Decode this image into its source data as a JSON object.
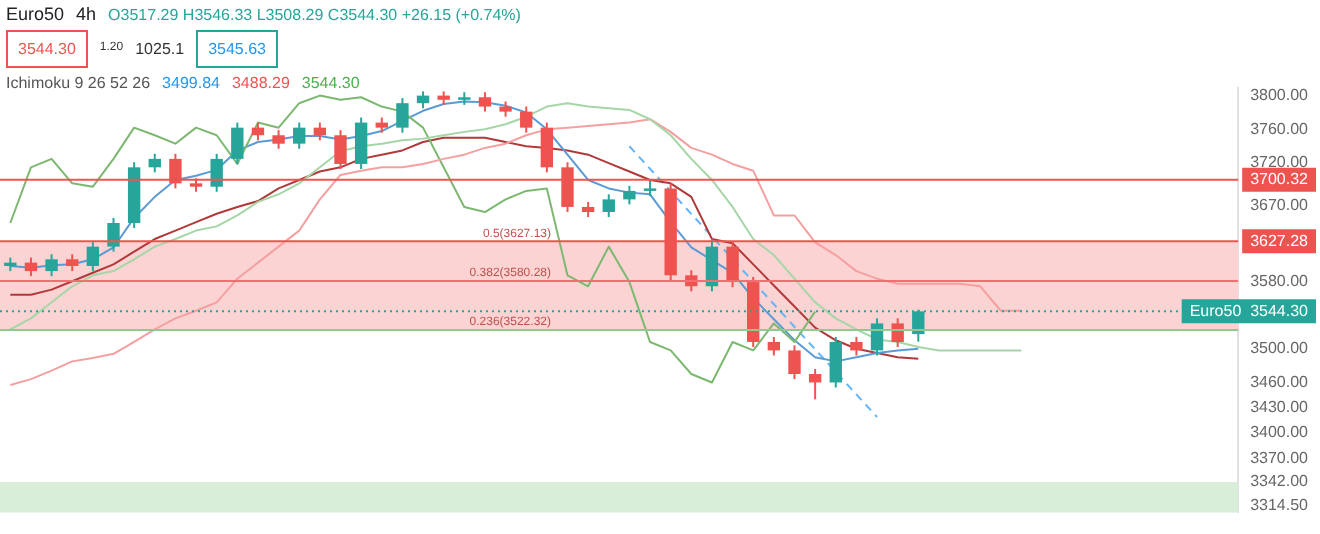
{
  "chart_data": {
    "type": "candlestick",
    "title": "Euro50",
    "subtitle": "4h",
    "categories": [
      null,
      null,
      null,
      null,
      null,
      null,
      null,
      null,
      null,
      null,
      null,
      null,
      null,
      null,
      null,
      null,
      null,
      null,
      null,
      null,
      null,
      null,
      null,
      null,
      null,
      null,
      null,
      null,
      null,
      null,
      null,
      null,
      null,
      null,
      null,
      null,
      null,
      null,
      null,
      null,
      null,
      null,
      null,
      null,
      null,
      null,
      null,
      null,
      null,
      null,
      null,
      null,
      null,
      null,
      null,
      null,
      null,
      null,
      null,
      null
    ],
    "ohlc": [
      [
        3598,
        3608,
        3592,
        3602
      ],
      [
        3602,
        3608,
        3586,
        3592
      ],
      [
        3592,
        3612,
        3586,
        3606
      ],
      [
        3606,
        3612,
        3592,
        3598
      ],
      [
        3598,
        3627,
        3592,
        3621
      ],
      [
        3621,
        3655,
        3615,
        3649
      ],
      [
        3649,
        3721,
        3643,
        3715
      ],
      [
        3715,
        3731,
        3709,
        3725
      ],
      [
        3725,
        3731,
        3690,
        3696
      ],
      [
        3696,
        3702,
        3686,
        3692
      ],
      [
        3692,
        3731,
        3686,
        3725
      ],
      [
        3725,
        3768,
        3719,
        3762
      ],
      [
        3762,
        3768,
        3747,
        3753
      ],
      [
        3753,
        3759,
        3737,
        3743
      ],
      [
        3743,
        3768,
        3737,
        3762
      ],
      [
        3762,
        3768,
        3747,
        3753
      ],
      [
        3753,
        3759,
        3713,
        3719
      ],
      [
        3719,
        3774,
        3713,
        3768
      ],
      [
        3768,
        3774,
        3756,
        3762
      ],
      [
        3762,
        3797,
        3756,
        3791
      ],
      [
        3791,
        3805,
        3785,
        3800
      ],
      [
        3800,
        3805,
        3789,
        3795
      ],
      [
        3795,
        3804,
        3789,
        3798
      ],
      [
        3798,
        3804,
        3781,
        3787
      ],
      [
        3787,
        3793,
        3775,
        3781
      ],
      [
        3781,
        3787,
        3756,
        3762
      ],
      [
        3762,
        3768,
        3709,
        3715
      ],
      [
        3715,
        3721,
        3662,
        3668
      ],
      [
        3668,
        3674,
        3656,
        3662
      ],
      [
        3662,
        3683,
        3656,
        3677
      ],
      [
        3677,
        3693,
        3671,
        3687
      ],
      [
        3687,
        3700,
        3681,
        3690
      ],
      [
        3690,
        3696,
        3581,
        3587
      ],
      [
        3587,
        3593,
        3568,
        3574
      ],
      [
        3574,
        3630,
        3568,
        3621
      ],
      [
        3621,
        3627,
        3573,
        3579
      ],
      [
        3579,
        3585,
        3502,
        3508
      ],
      [
        3508,
        3514,
        3492,
        3498
      ],
      [
        3498,
        3504,
        3464,
        3470
      ],
      [
        3470,
        3476,
        3440,
        3460
      ],
      [
        3460,
        3514,
        3454,
        3508
      ],
      [
        3508,
        3514,
        3492,
        3498
      ],
      [
        3498,
        3536,
        3492,
        3530
      ],
      [
        3530,
        3536,
        3502,
        3508
      ],
      [
        3517.29,
        3546.33,
        3508.29,
        3544.3
      ],
      null,
      null,
      null,
      null,
      null,
      null,
      null,
      null,
      null,
      null,
      null,
      null,
      null,
      null,
      null
    ],
    "colors": [
      "#26a69a",
      "#ef5350",
      "#26a69a",
      "#ef5350",
      "#26a69a",
      "#26a69a",
      "#26a69a",
      "#26a69a",
      "#ef5350",
      "#ef5350",
      "#26a69a",
      "#26a69a",
      "#ef5350",
      "#ef5350",
      "#26a69a",
      "#ef5350",
      "#ef5350",
      "#26a69a",
      "#ef5350",
      "#26a69a",
      "#26a69a",
      "#ef5350",
      "#26a69a",
      "#ef5350",
      "#ef5350",
      "#ef5350",
      "#ef5350",
      "#ef5350",
      "#ef5350",
      "#26a69a",
      "#26a69a",
      "#26a69a",
      "#ef5350",
      "#ef5350",
      "#26a69a",
      "#ef5350",
      "#ef5350",
      "#ef5350",
      "#ef5350",
      "#ef5350",
      "#26a69a",
      "#ef5350",
      "#26a69a",
      "#ef5350",
      "#26a69a",
      null,
      null,
      null,
      null,
      null,
      null,
      null,
      null,
      null,
      null,
      null,
      null,
      null,
      null,
      null
    ],
    "series": [
      {
        "type": "line",
        "color": "#a5d6a7",
        "values": [
          3523,
          3536,
          3555,
          3574,
          3587,
          3592,
          3606,
          3621,
          3630,
          3640,
          3645,
          3658,
          3674,
          3683,
          3696,
          3715,
          3734,
          3740,
          3743,
          3747,
          3749,
          3753,
          3757,
          3760,
          3766,
          3775,
          3787,
          3791,
          3787,
          3785,
          3783,
          3772,
          3753,
          3725,
          3700,
          3668,
          3630,
          3611,
          3583,
          3555,
          3536,
          3523,
          3511,
          3508,
          3502,
          3498,
          3498,
          3498,
          3498,
          3498,
          null,
          null,
          null,
          null,
          null,
          null,
          null,
          null,
          null,
          null
        ]
      },
      {
        "type": "line",
        "color": "#f4a0a0",
        "values": [
          3457,
          3464,
          3474,
          3485,
          3489,
          3494,
          3508,
          3523,
          3536,
          3545,
          3555,
          3583,
          3602,
          3621,
          3640,
          3677,
          3706,
          3711,
          3715,
          3715,
          3719,
          3725,
          3730,
          3738,
          3743,
          3753,
          3760,
          3762,
          3764,
          3766,
          3768,
          3772,
          3757,
          3738,
          3730,
          3719,
          3711,
          3658,
          3658,
          3626,
          3611,
          3592,
          3583,
          3577,
          3577,
          3577,
          3577,
          3574,
          3545,
          3545,
          null,
          null,
          null,
          null,
          null,
          null,
          null,
          null,
          null,
          null
        ]
      },
      {
        "type": "line",
        "color": "#7cb870",
        "values": [
          3649,
          3715,
          3725,
          3696,
          3692,
          3725,
          3762,
          3753,
          3743,
          3762,
          3753,
          3719,
          3768,
          3762,
          3791,
          3800,
          3795,
          3798,
          3787,
          3781,
          3762,
          3715,
          3668,
          3662,
          3677,
          3687,
          3690,
          3587,
          3574,
          3621,
          3579,
          3508,
          3498,
          3470,
          3460,
          3508,
          3498,
          3530,
          3508,
          3544,
          null,
          null,
          null,
          null,
          null,
          null,
          null,
          null,
          null,
          null,
          null,
          null,
          null,
          null,
          null,
          null,
          null,
          null,
          null,
          null
        ]
      },
      {
        "type": "line",
        "color": "#5b9bd5",
        "values": [
          3598,
          3596,
          3599,
          3600,
          3606,
          3620,
          3655,
          3680,
          3700,
          3705,
          3712,
          3735,
          3745,
          3748,
          3752,
          3752,
          3748,
          3752,
          3758,
          3770,
          3782,
          3790,
          3793,
          3792,
          3788,
          3780,
          3760,
          3730,
          3700,
          3690,
          3685,
          3683,
          3650,
          3620,
          3605,
          3590,
          3560,
          3535,
          3510,
          3490,
          3485,
          3490,
          3495,
          3498,
          3500,
          null,
          null,
          null,
          null,
          null,
          null,
          null,
          null,
          null,
          null,
          null,
          null,
          null,
          null,
          null
        ]
      },
      {
        "type": "line",
        "color": "#b03a3a",
        "values": [
          3564,
          3564,
          3570,
          3580,
          3590,
          3600,
          3615,
          3630,
          3640,
          3650,
          3660,
          3668,
          3675,
          3690,
          3700,
          3710,
          3715,
          3725,
          3730,
          3735,
          3745,
          3750,
          3750,
          3750,
          3745,
          3740,
          3738,
          3735,
          3730,
          3720,
          3710,
          3700,
          3696,
          3680,
          3630,
          3625,
          3600,
          3575,
          3550,
          3525,
          3510,
          3500,
          3495,
          3490,
          3488,
          null,
          null,
          null,
          null,
          null,
          null,
          null,
          null,
          null,
          null,
          null,
          null,
          null,
          null,
          null
        ]
      },
      {
        "type": "line",
        "color": "#64b5f6",
        "line_style": "dashed",
        "values": [
          null,
          null,
          null,
          null,
          null,
          null,
          null,
          null,
          null,
          null,
          null,
          null,
          null,
          null,
          null,
          null,
          null,
          null,
          null,
          null,
          null,
          null,
          null,
          null,
          null,
          null,
          null,
          null,
          null,
          null,
          3740,
          null,
          null,
          null,
          null,
          null,
          null,
          null,
          null,
          null,
          null,
          null,
          3419,
          null,
          null,
          null,
          null,
          null,
          null,
          null,
          null,
          null,
          null,
          null,
          null,
          null,
          null,
          null,
          null,
          null
        ]
      }
    ],
    "ylim": [
      3306,
      3809
    ],
    "yticks": [
      {
        "value": 3800,
        "label": "3800.00"
      },
      {
        "value": 3760,
        "label": "3760.00"
      },
      {
        "value": 3720,
        "label": "3720.00"
      },
      {
        "value": 3670,
        "label": "3670.00"
      },
      {
        "value": 3580,
        "label": "3580.00"
      },
      {
        "value": 3500,
        "label": "3500.00"
      },
      {
        "value": 3460,
        "label": "3460.00"
      },
      {
        "value": 3430,
        "label": "3430.00"
      },
      {
        "value": 3400,
        "label": "3400.00"
      },
      {
        "value": 3370,
        "label": "3370.00"
      },
      {
        "value": 3342,
        "label": "3342.00"
      },
      {
        "value": 3314.5,
        "label": "3314.50"
      }
    ],
    "tick_labels": "y",
    "ref_lines": [
      {
        "axis": "y",
        "value": 3700.32,
        "label": "3700.32",
        "color": "#ef5350"
      },
      {
        "axis": "y",
        "value": 3627.28,
        "label": "3627.28",
        "color": "#ef5350"
      },
      {
        "axis": "y",
        "value": 3580.28,
        "color": "#ef7070"
      },
      {
        "axis": "y",
        "value": 3522.32,
        "color": "#8fc98f"
      },
      {
        "axis": "y",
        "value": 3544.3,
        "label": "Euro50  3544.30",
        "color": "#26a69a",
        "line_style": "dotted"
      }
    ],
    "bands": [
      {
        "axis": "y",
        "from": 3522.32,
        "to": 3627.13,
        "color": "#fbd3d3"
      },
      {
        "axis": "y",
        "from": 3306,
        "to": 3342,
        "color": "#d8eed8"
      }
    ],
    "annotations": [
      "O3517.29 H3546.33 L3508.29 C3544.30 +26.15 (+0.74%)",
      "3544.30",
      "1.20",
      "1025.1",
      "3545.63",
      "Ichimoku 9 26 52 26",
      "3499.84",
      "3488.29",
      "3544.30",
      {
        "text": "0.5(3627.13)",
        "y": 3627.13
      },
      {
        "text": "0.382(3580.28)",
        "y": 3580.28
      },
      {
        "text": "0.236(3522.32)",
        "y": 3522.32
      }
    ]
  }
}
